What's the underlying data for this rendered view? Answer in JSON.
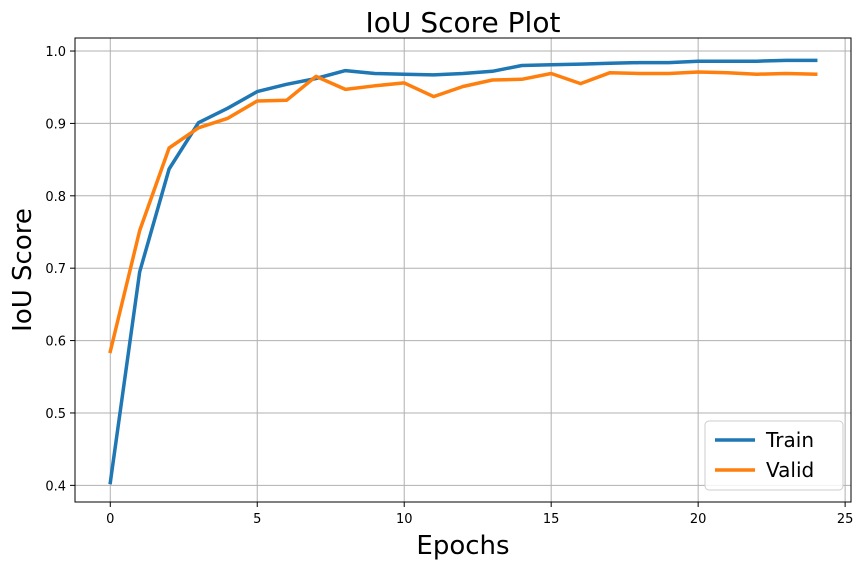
{
  "chart_data": {
    "type": "line",
    "title": "IoU Score Plot",
    "xlabel": "Epochs",
    "ylabel": "IoU Score",
    "xlim": [
      -1.2,
      25.2
    ],
    "ylim": [
      0.377,
      1.018
    ],
    "xticks": [
      0,
      5,
      10,
      15,
      20,
      25
    ],
    "yticks": [
      0.4,
      0.5,
      0.6,
      0.7,
      0.8,
      0.9,
      1.0
    ],
    "xtick_labels": [
      "0",
      "5",
      "10",
      "15",
      "20",
      "25"
    ],
    "ytick_labels": [
      "0.4",
      "0.5",
      "0.6",
      "0.7",
      "0.8",
      "0.9",
      "1.0"
    ],
    "grid": true,
    "legend_position": "bottom-right",
    "x": [
      0,
      1,
      2,
      3,
      4,
      5,
      6,
      7,
      8,
      9,
      10,
      11,
      12,
      13,
      14,
      15,
      16,
      17,
      18,
      19,
      20,
      21,
      22,
      23,
      24
    ],
    "series": [
      {
        "name": "Train",
        "color": "#1f77b4",
        "values": [
          0.404,
          0.695,
          0.837,
          0.901,
          0.921,
          0.944,
          0.954,
          0.962,
          0.973,
          0.969,
          0.968,
          0.967,
          0.969,
          0.972,
          0.98,
          0.981,
          0.982,
          0.983,
          0.984,
          0.984,
          0.986,
          0.986,
          0.986,
          0.987,
          0.987
        ]
      },
      {
        "name": "Valid",
        "color": "#ff7f0e",
        "values": [
          0.585,
          0.752,
          0.866,
          0.894,
          0.907,
          0.931,
          0.932,
          0.965,
          0.947,
          0.952,
          0.956,
          0.937,
          0.951,
          0.96,
          0.961,
          0.969,
          0.955,
          0.97,
          0.969,
          0.969,
          0.971,
          0.97,
          0.968,
          0.969,
          0.968
        ]
      }
    ]
  }
}
